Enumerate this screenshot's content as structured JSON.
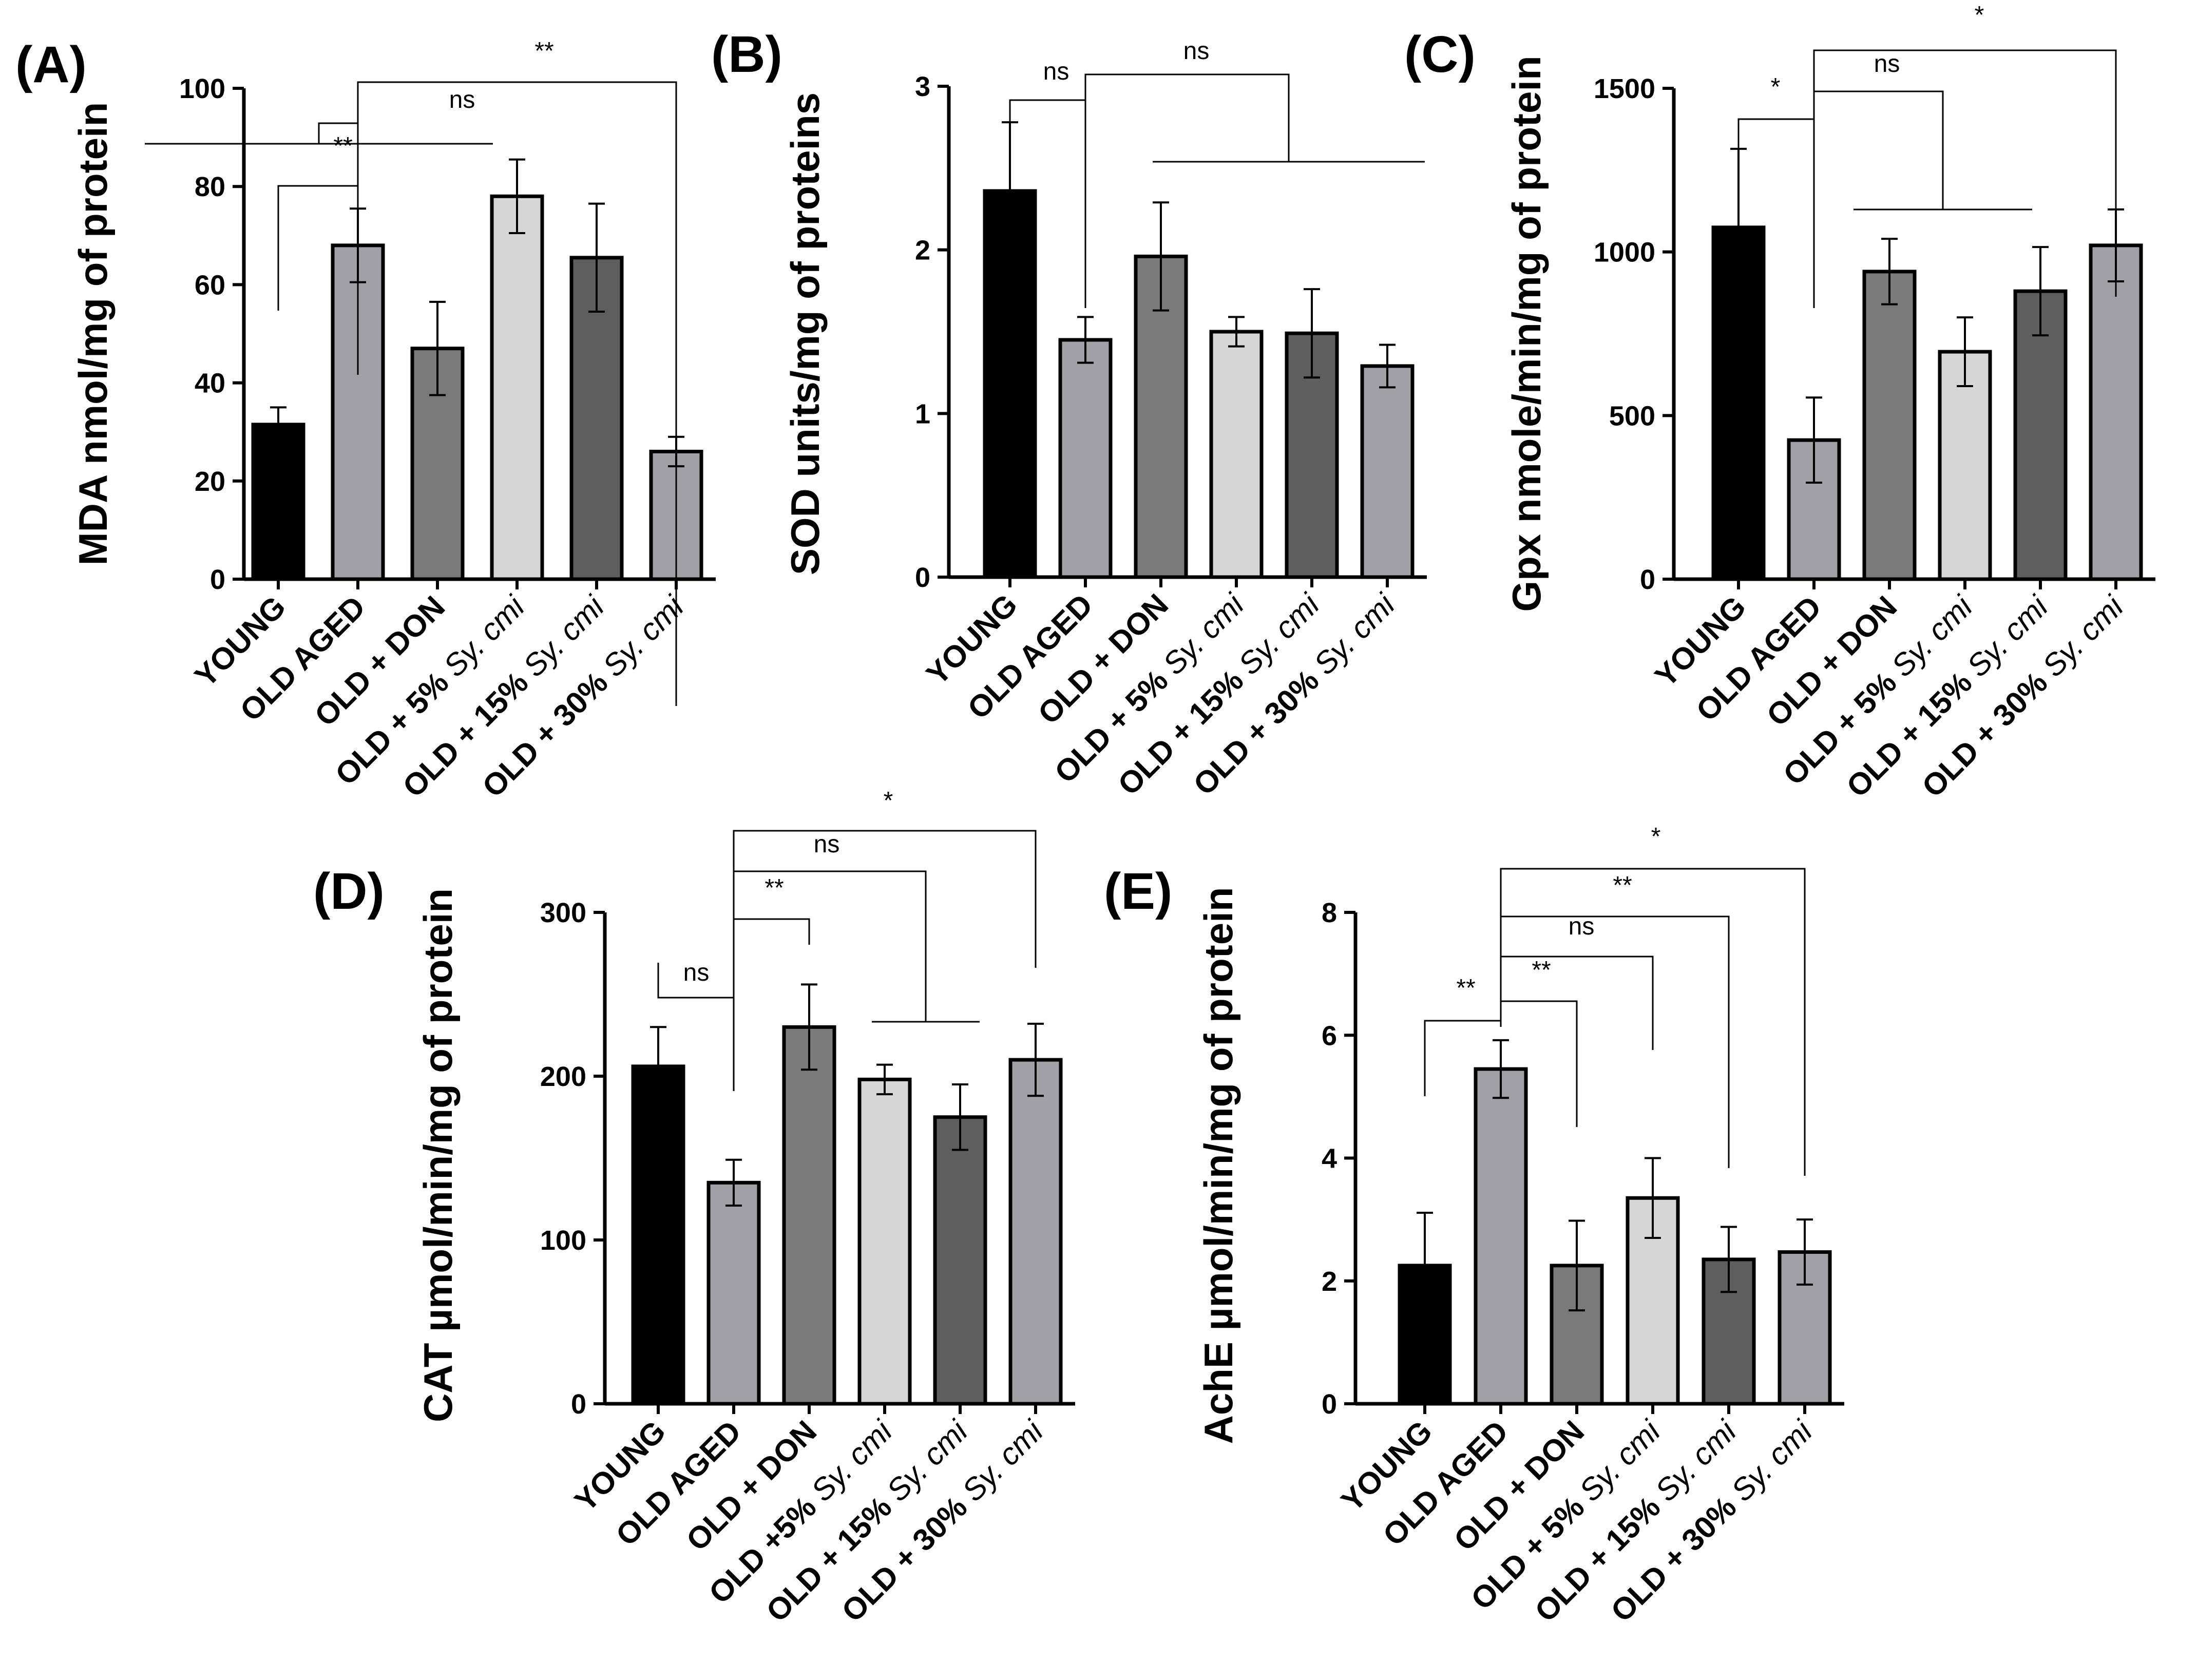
{
  "chart_data": [
    {
      "type": "bar",
      "panel_label": "(A)",
      "ylabel": "MDA nmol/mg of protein",
      "ylim": [
        0,
        100
      ],
      "yticks": [
        0,
        20,
        40,
        60,
        80,
        100
      ],
      "categories": [
        {
          "label": "YOUNG",
          "suffix": ""
        },
        {
          "label": "OLD AGED",
          "suffix": ""
        },
        {
          "label": "OLD + DON",
          "suffix": ""
        },
        {
          "label": "OLD + 5% ",
          "suffix": "Sy. cmi"
        },
        {
          "label": "OLD + 15% ",
          "suffix": "Sy. cmi"
        },
        {
          "label": "OLD + 30% ",
          "suffix": "Sy. cmi"
        }
      ],
      "values": [
        31.5,
        68,
        47,
        78,
        65.5,
        26
      ],
      "errors": [
        3.5,
        7.5,
        9.5,
        7.5,
        11,
        3
      ],
      "colors": [
        "#000000",
        "#a0a0a6",
        "#7a7a7a",
        "#d6d6d6",
        "#5e5e5e",
        "#a0a0a6"
      ],
      "annotations": [
        {
          "text": "**",
          "type": "pair",
          "from": 0,
          "to": 1
        },
        {
          "text": "ns",
          "type": "group",
          "from": 1,
          "to": [
            3,
            5
          ]
        },
        {
          "text": "**",
          "type": "pair",
          "from": 1,
          "to": 5
        }
      ]
    },
    {
      "type": "bar",
      "panel_label": "(B)",
      "ylabel": "SOD units/mg of proteins",
      "ylim": [
        0,
        3
      ],
      "yticks": [
        0,
        1,
        2,
        3
      ],
      "categories": [
        {
          "label": "YOUNG",
          "suffix": ""
        },
        {
          "label": "OLD AGED",
          "suffix": ""
        },
        {
          "label": "OLD + DON",
          "suffix": ""
        },
        {
          "label": "OLD + 5% ",
          "suffix": "Sy. cmi"
        },
        {
          "label": "OLD + 15% ",
          "suffix": "Sy. cmi"
        },
        {
          "label": "OLD + 30% ",
          "suffix": "Sy. cmi"
        }
      ],
      "values": [
        2.36,
        1.45,
        1.96,
        1.5,
        1.49,
        1.29
      ],
      "errors": [
        0.42,
        0.14,
        0.33,
        0.09,
        0.27,
        0.13
      ],
      "colors": [
        "#000000",
        "#a0a0a6",
        "#7a7a7a",
        "#d6d6d6",
        "#5e5e5e",
        "#a0a0a6"
      ],
      "annotations": [
        {
          "text": "ns",
          "type": "pair",
          "from": 0,
          "to": 1
        },
        {
          "text": "ns",
          "type": "group",
          "from": 1,
          "to": [
            2,
            5
          ]
        }
      ]
    },
    {
      "type": "bar",
      "panel_label": "(C)",
      "ylabel": "Gpx nmole/min/mg of protein",
      "ylim": [
        0,
        1500
      ],
      "yticks": [
        0,
        500,
        1000,
        1500
      ],
      "categories": [
        {
          "label": "YOUNG",
          "suffix": ""
        },
        {
          "label": "OLD AGED",
          "suffix": ""
        },
        {
          "label": "OLD + DON",
          "suffix": ""
        },
        {
          "label": "OLD + 5% ",
          "suffix": "Sy. cmi"
        },
        {
          "label": "OLD + 15% ",
          "suffix": "Sy. cmi"
        },
        {
          "label": "OLD + 30% ",
          "suffix": "Sy. cmi"
        }
      ],
      "values": [
        1075,
        425,
        940,
        695,
        880,
        1020
      ],
      "errors": [
        240,
        130,
        100,
        105,
        135,
        110
      ],
      "colors": [
        "#000000",
        "#a0a0a6",
        "#7a7a7a",
        "#d6d6d6",
        "#5e5e5e",
        "#a0a0a6"
      ],
      "annotations": [
        {
          "text": "*",
          "type": "pair",
          "from": 0,
          "to": 1
        },
        {
          "text": "ns",
          "type": "group",
          "from": 1,
          "to": [
            2,
            5
          ]
        },
        {
          "text": "*",
          "type": "pair",
          "from": 1,
          "to": 5
        }
      ]
    },
    {
      "type": "bar",
      "panel_label": "(D)",
      "ylabel": "CAT µmol/min/mg of protein",
      "ylim": [
        0,
        300
      ],
      "yticks": [
        0,
        100,
        200,
        300
      ],
      "categories": [
        {
          "label": "YOUNG",
          "suffix": ""
        },
        {
          "label": "OLD AGED",
          "suffix": ""
        },
        {
          "label": "OLD + DON",
          "suffix": ""
        },
        {
          "label": "OLD +5% ",
          "suffix": "Sy. cmi"
        },
        {
          "label": "OLD + 15% ",
          "suffix": "Sy. cmi"
        },
        {
          "label": "OLD + 30% ",
          "suffix": "Sy. cmi"
        }
      ],
      "values": [
        206,
        135,
        230,
        198,
        175,
        210
      ],
      "errors": [
        24,
        14,
        26,
        9,
        20,
        22
      ],
      "colors": [
        "#000000",
        "#a0a0a6",
        "#7a7a7a",
        "#d6d6d6",
        "#5e5e5e",
        "#a0a0a6"
      ],
      "annotations": [
        {
          "text": "ns",
          "type": "pair",
          "from": 0,
          "to": 1
        },
        {
          "text": "**",
          "type": "pair",
          "from": 1,
          "to": 2
        },
        {
          "text": "ns",
          "type": "group",
          "from": 1,
          "to": [
            3,
            4
          ]
        },
        {
          "text": "*",
          "type": "pair",
          "from": 1,
          "to": 5
        }
      ]
    },
    {
      "type": "bar",
      "panel_label": "(E)",
      "ylabel": "AchE µmol/min/mg of protein",
      "ylim": [
        0,
        8
      ],
      "yticks": [
        0,
        2,
        4,
        6,
        8
      ],
      "categories": [
        {
          "label": "YOUNG",
          "suffix": ""
        },
        {
          "label": "OLD AGED",
          "suffix": ""
        },
        {
          "label": "OLD + DON",
          "suffix": ""
        },
        {
          "label": "OLD + 5% ",
          "suffix": "Sy. cmi"
        },
        {
          "label": "OLD + 15% ",
          "suffix": "Sy. cmi"
        },
        {
          "label": "OLD + 30% ",
          "suffix": "Sy. cmi"
        }
      ],
      "values": [
        2.25,
        5.45,
        2.25,
        3.35,
        2.35,
        2.47
      ],
      "errors": [
        0.86,
        0.47,
        0.73,
        0.65,
        0.53,
        0.53
      ],
      "colors": [
        "#000000",
        "#a0a0a6",
        "#7a7a7a",
        "#d6d6d6",
        "#5e5e5e",
        "#a0a0a6"
      ],
      "annotations": [
        {
          "text": "**",
          "type": "pair",
          "from": 0,
          "to": 1
        },
        {
          "text": "**",
          "type": "pair",
          "from": 1,
          "to": 2
        },
        {
          "text": "ns",
          "type": "pair",
          "from": 1,
          "to": 3
        },
        {
          "text": "**",
          "type": "pair",
          "from": 1,
          "to": 4
        },
        {
          "text": "*",
          "type": "pair",
          "from": 1,
          "to": 5
        }
      ]
    }
  ]
}
